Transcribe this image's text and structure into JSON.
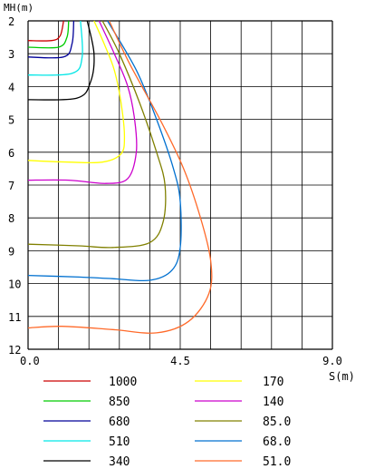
{
  "chart_data": {
    "type": "line",
    "xlabel": "S(m)",
    "ylabel": "MH(m)",
    "xlim": [
      0,
      9
    ],
    "ylim": [
      2,
      12
    ],
    "y_inverted": true,
    "grid": true,
    "x_tick_labels": [
      "0.0",
      "4.5",
      "9.0"
    ],
    "y_tick_labels": [
      "2",
      "3",
      "4",
      "5",
      "6",
      "7",
      "8",
      "9",
      "10",
      "11",
      "12"
    ],
    "legend_position": "bottom",
    "series": [
      {
        "name": "1000",
        "color": "#cc0000",
        "points": [
          [
            0,
            2.6
          ],
          [
            0.7,
            2.6
          ],
          [
            0.95,
            2.45
          ],
          [
            1.05,
            2
          ]
        ]
      },
      {
        "name": "850",
        "color": "#00cc00",
        "points": [
          [
            0,
            2.8
          ],
          [
            0.9,
            2.8
          ],
          [
            1.15,
            2.5
          ],
          [
            1.2,
            2
          ]
        ]
      },
      {
        "name": "680",
        "color": "#000099",
        "points": [
          [
            0,
            3.1
          ],
          [
            1.05,
            3.1
          ],
          [
            1.3,
            2.7
          ],
          [
            1.35,
            2
          ]
        ]
      },
      {
        "name": "510",
        "color": "#00e6e6",
        "points": [
          [
            0,
            3.65
          ],
          [
            1.3,
            3.6
          ],
          [
            1.6,
            3.1
          ],
          [
            1.55,
            2
          ]
        ]
      },
      {
        "name": "340",
        "color": "#000000",
        "points": [
          [
            0,
            4.4
          ],
          [
            1.45,
            4.35
          ],
          [
            1.85,
            3.85
          ],
          [
            1.95,
            3.0
          ],
          [
            1.75,
            2
          ]
        ]
      },
      {
        "name": "170",
        "color": "#ffff00",
        "points": [
          [
            0,
            6.25
          ],
          [
            1.2,
            6.3
          ],
          [
            2.2,
            6.3
          ],
          [
            2.75,
            6.05
          ],
          [
            2.85,
            5.5
          ],
          [
            2.75,
            4.5
          ],
          [
            2.55,
            3.5
          ],
          [
            2.25,
            2.7
          ],
          [
            1.95,
            2
          ]
        ]
      },
      {
        "name": "140",
        "color": "#cc00cc",
        "points": [
          [
            0,
            6.85
          ],
          [
            1.2,
            6.85
          ],
          [
            2.3,
            6.95
          ],
          [
            2.95,
            6.8
          ],
          [
            3.2,
            6.0
          ],
          [
            3.15,
            5.0
          ],
          [
            2.95,
            4.0
          ],
          [
            2.55,
            3.0
          ],
          [
            2.1,
            2
          ]
        ]
      },
      {
        "name": "85.0",
        "color": "#808000",
        "points": [
          [
            0,
            8.8
          ],
          [
            1.5,
            8.85
          ],
          [
            2.5,
            8.9
          ],
          [
            3.6,
            8.75
          ],
          [
            4.0,
            8.1
          ],
          [
            4.05,
            7.0
          ],
          [
            3.8,
            6.0
          ],
          [
            3.3,
            4.5
          ],
          [
            2.7,
            3.0
          ],
          [
            2.2,
            2
          ]
        ]
      },
      {
        "name": "68.0",
        "color": "#0070d0",
        "points": [
          [
            0,
            9.75
          ],
          [
            1.5,
            9.8
          ],
          [
            2.5,
            9.85
          ],
          [
            3.6,
            9.9
          ],
          [
            4.25,
            9.6
          ],
          [
            4.5,
            8.9
          ],
          [
            4.5,
            7.5
          ],
          [
            4.3,
            6.5
          ],
          [
            3.8,
            5.0
          ],
          [
            3.2,
            3.5
          ],
          [
            2.35,
            2
          ]
        ]
      },
      {
        "name": "51.0",
        "color": "#ff6a2a",
        "points": [
          [
            0,
            11.35
          ],
          [
            1.0,
            11.3
          ],
          [
            2.5,
            11.4
          ],
          [
            3.8,
            11.5
          ],
          [
            4.75,
            11.15
          ],
          [
            5.35,
            10.3
          ],
          [
            5.4,
            9.3
          ],
          [
            5.1,
            8.0
          ],
          [
            4.6,
            6.5
          ],
          [
            3.9,
            5.0
          ],
          [
            3.0,
            3.3
          ],
          [
            2.4,
            2
          ]
        ]
      }
    ]
  }
}
